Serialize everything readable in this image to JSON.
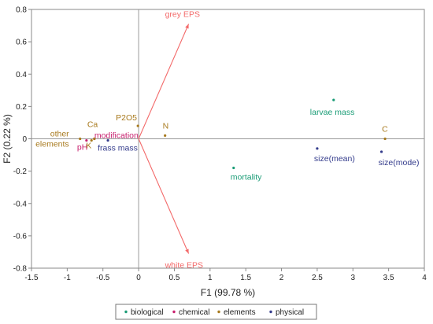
{
  "chart_data": {
    "type": "scatter",
    "xlabel": "F1 (99.78 %)",
    "ylabel": "F2 (0.22 %)",
    "xlim": [
      -1.5,
      4
    ],
    "ylim": [
      -0.8,
      0.8
    ],
    "xticks": [
      "-1.5",
      "-1",
      "-0.5",
      "0",
      "0.5",
      "1",
      "1.5",
      "2",
      "2.5",
      "3",
      "3.5",
      "4"
    ],
    "yticks": [
      "-0.8",
      "-0.6",
      "-0.4",
      "-0.2",
      "0",
      "0.2",
      "0.4",
      "0.6",
      "0.8"
    ],
    "grid": false,
    "legend_position": "bottom",
    "series": [
      {
        "name": "biological",
        "color": "#1a9c76",
        "points": [
          {
            "label": "larvae mass",
            "x": 2.73,
            "y": 0.24
          },
          {
            "label": "mortality",
            "x": 1.33,
            "y": -0.18
          }
        ]
      },
      {
        "name": "chemical",
        "color": "#c8206e",
        "points": [
          {
            "label": "modification",
            "x": -0.62,
            "y": 0.0
          },
          {
            "label": "pH",
            "x": -0.73,
            "y": -0.01
          }
        ]
      },
      {
        "name": "elements",
        "color": "#a87a1e",
        "points": [
          {
            "label": "C",
            "x": 3.45,
            "y": 0.0
          },
          {
            "label": "N",
            "x": 0.37,
            "y": 0.02
          },
          {
            "label": "P2O5",
            "x": -0.01,
            "y": 0.08
          },
          {
            "label": "Ca",
            "x": -0.62,
            "y": 0.0
          },
          {
            "label": "K",
            "x": -0.66,
            "y": -0.01
          },
          {
            "label": "other elements",
            "x": -0.82,
            "y": 0.0
          }
        ]
      },
      {
        "name": "physical",
        "color": "#343c8c",
        "points": [
          {
            "label": "size(mean)",
            "x": 2.5,
            "y": -0.06
          },
          {
            "label": "size(mode)",
            "x": 3.4,
            "y": -0.08
          },
          {
            "label": "frass mass",
            "x": -0.43,
            "y": -0.01
          }
        ]
      }
    ],
    "vectors": [
      {
        "label": "grey EPS",
        "x": 0.7,
        "y": 0.71,
        "color": "#f36a6a"
      },
      {
        "label": "white EPS",
        "x": 0.7,
        "y": -0.71,
        "color": "#f36a6a"
      }
    ]
  }
}
